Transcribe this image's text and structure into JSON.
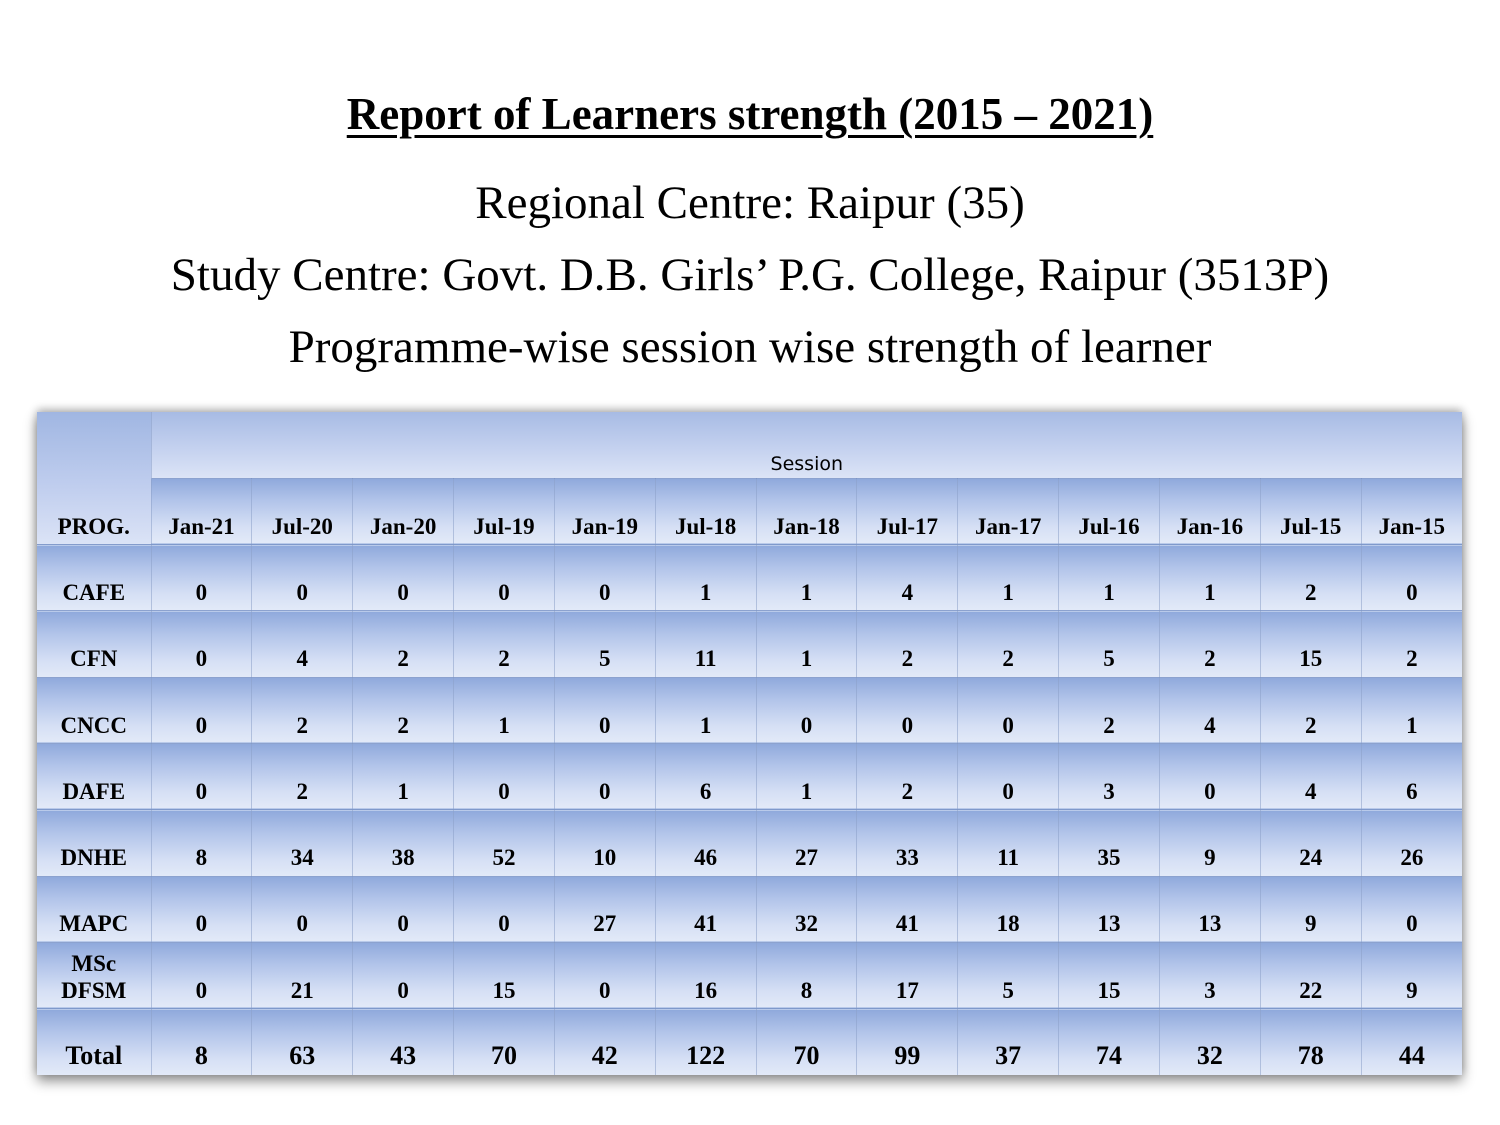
{
  "header": {
    "title": "Report of Learners strength (2015 – 2021)",
    "regional_centre": "Regional Centre: Raipur (35)",
    "study_centre": "Study Centre: Govt. D.B. Girls’ P.G. College, Raipur (3513P)",
    "description": "Programme-wise session wise strength of learner"
  },
  "table": {
    "prog_header": "PROG.",
    "session_header": "Session",
    "sessions": [
      "Jan-21",
      "Jul-20",
      "Jan-20",
      "Jul-19",
      "Jan-19",
      "Jul-18",
      "Jan-18",
      "Jul-17",
      "Jan-17",
      "Jul-16",
      "Jan-16",
      "Jul-15",
      "Jan-15"
    ],
    "rows": [
      {
        "prog": "CAFE",
        "values": [
          "0",
          "0",
          "0",
          "0",
          "0",
          "1",
          "1",
          "4",
          "1",
          "1",
          "1",
          "2",
          "0"
        ]
      },
      {
        "prog": "CFN",
        "values": [
          "0",
          "4",
          "2",
          "2",
          "5",
          "11",
          "1",
          "2",
          "2",
          "5",
          "2",
          "15",
          "2"
        ]
      },
      {
        "prog": "CNCC",
        "values": [
          "0",
          "2",
          "2",
          "1",
          "0",
          "1",
          "0",
          "0",
          "0",
          "2",
          "4",
          "2",
          "1"
        ]
      },
      {
        "prog": "DAFE",
        "values": [
          "0",
          "2",
          "1",
          "0",
          "0",
          "6",
          "1",
          "2",
          "0",
          "3",
          "0",
          "4",
          "6"
        ]
      },
      {
        "prog": "DNHE",
        "values": [
          "8",
          "34",
          "38",
          "52",
          "10",
          "46",
          "27",
          "33",
          "11",
          "35",
          "9",
          "24",
          "26"
        ]
      },
      {
        "prog": "MAPC",
        "values": [
          "0",
          "0",
          "0",
          "0",
          "27",
          "41",
          "32",
          "41",
          "18",
          "13",
          "13",
          "9",
          "0"
        ]
      },
      {
        "prog": "MSc DFSM",
        "values": [
          "0",
          "21",
          "0",
          "15",
          "0",
          "16",
          "8",
          "17",
          "5",
          "15",
          "3",
          "22",
          "9"
        ]
      }
    ],
    "total": {
      "label": "Total",
      "values": [
        "8",
        "63",
        "43",
        "70",
        "42",
        "122",
        "70",
        "99",
        "37",
        "74",
        "32",
        "78",
        "44"
      ]
    }
  }
}
